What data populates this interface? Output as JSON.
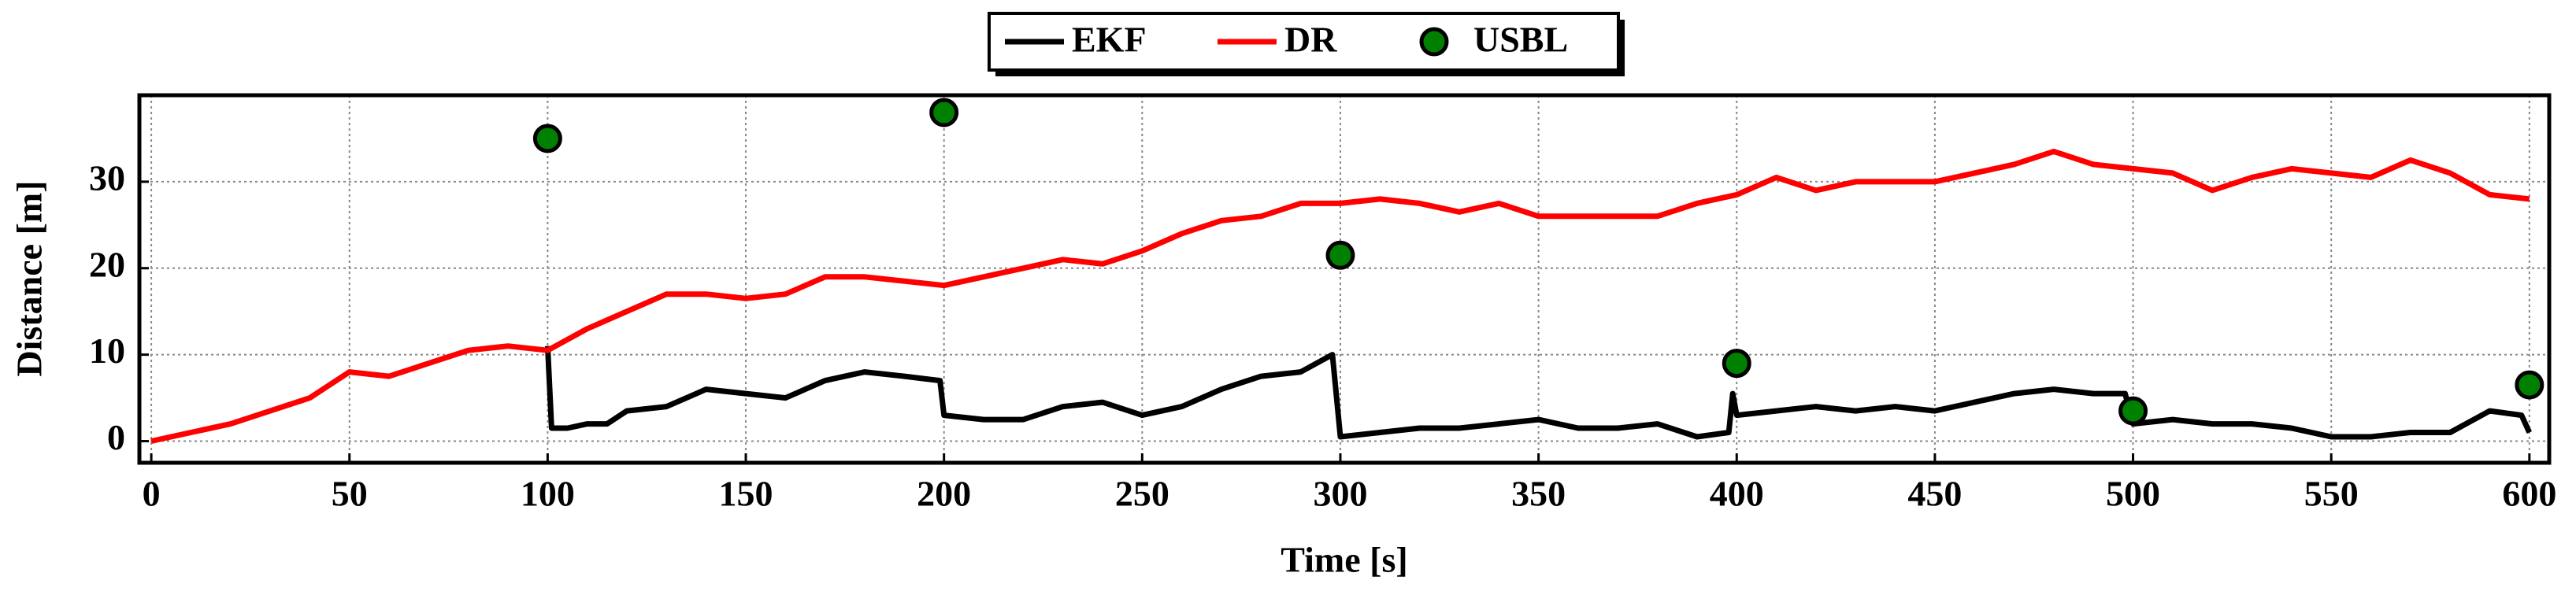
{
  "chart_data": {
    "type": "line",
    "xlabel": "Time [s]",
    "ylabel": "Distance [m]",
    "xlim": [
      -3,
      605
    ],
    "ylim": [
      -2.5,
      40
    ],
    "xticks": [
      0,
      50,
      100,
      150,
      200,
      250,
      300,
      350,
      400,
      450,
      500,
      550,
      600
    ],
    "yticks": [
      0,
      10,
      20,
      30
    ],
    "grid": true,
    "legend": "top-center",
    "series": [
      {
        "name": "EKF",
        "color": "#000000",
        "kind": "line",
        "x": [
          100,
          101,
          105,
          110,
          115,
          120,
          130,
          140,
          150,
          160,
          170,
          180,
          190,
          199,
          200,
          210,
          220,
          230,
          240,
          250,
          260,
          270,
          280,
          290,
          298,
          300,
          310,
          320,
          330,
          340,
          350,
          360,
          370,
          380,
          390,
          398,
          399,
          400,
          410,
          420,
          430,
          440,
          450,
          460,
          470,
          480,
          490,
          498,
          500,
          510,
          520,
          530,
          540,
          550,
          560,
          570,
          580,
          590,
          598,
          600
        ],
        "values": [
          11,
          1.5,
          1.5,
          2,
          2,
          3.5,
          4,
          6,
          5.5,
          5,
          7,
          8,
          7.5,
          7,
          3,
          2.5,
          2.5,
          4,
          4.5,
          3,
          4,
          6,
          7.5,
          8,
          10,
          0.5,
          1,
          1.5,
          1.5,
          2,
          2.5,
          1.5,
          1.5,
          2,
          0.5,
          1,
          5.5,
          3,
          3.5,
          4,
          3.5,
          4,
          3.5,
          4.5,
          5.5,
          6,
          5.5,
          5.5,
          2,
          2.5,
          2,
          2,
          1.5,
          0.5,
          0.5,
          1,
          1,
          3.5,
          3,
          1
        ]
      },
      {
        "name": "DR",
        "color": "#ff0000",
        "kind": "line",
        "x": [
          0,
          10,
          20,
          30,
          40,
          50,
          60,
          70,
          80,
          90,
          100,
          110,
          120,
          130,
          140,
          150,
          160,
          170,
          180,
          190,
          200,
          210,
          220,
          230,
          240,
          250,
          260,
          270,
          280,
          290,
          300,
          310,
          320,
          330,
          340,
          350,
          360,
          370,
          380,
          390,
          400,
          410,
          420,
          430,
          440,
          450,
          460,
          470,
          480,
          490,
          500,
          510,
          520,
          530,
          540,
          550,
          560,
          570,
          580,
          590,
          600
        ],
        "values": [
          0,
          1,
          2,
          3.5,
          5,
          8,
          7.5,
          9,
          10.5,
          11,
          10.5,
          13,
          15,
          17,
          17,
          16.5,
          17,
          19,
          19,
          18.5,
          18,
          19,
          20,
          21,
          20.5,
          22,
          24,
          25.5,
          26,
          27.5,
          27.5,
          28,
          27.5,
          26.5,
          27.5,
          26,
          26,
          26,
          26,
          27.5,
          28.5,
          30.5,
          29,
          30,
          30,
          30,
          31,
          32,
          33.5,
          32,
          31.5,
          31,
          29,
          30.5,
          31.5,
          31,
          30.5,
          32.5,
          31,
          28.5,
          28
        ]
      },
      {
        "name": "USBL",
        "color": "#008000",
        "kind": "scatter",
        "x": [
          100,
          200,
          300,
          400,
          500,
          600
        ],
        "values": [
          35,
          38,
          21.5,
          9,
          3.5,
          6.5
        ]
      }
    ]
  }
}
